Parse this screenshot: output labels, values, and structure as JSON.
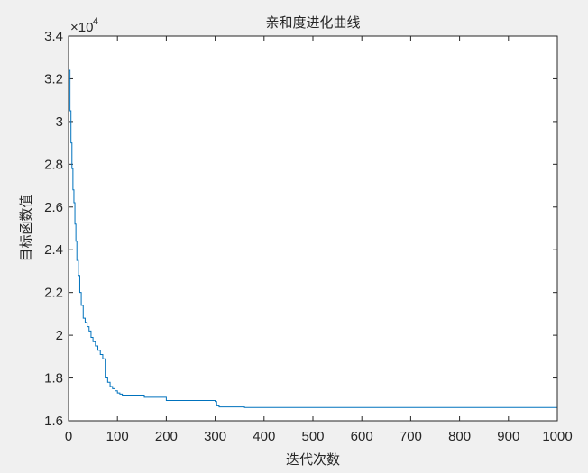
{
  "chart_data": {
    "type": "line",
    "title": "亲和度进化曲线",
    "xlabel": "迭代次数",
    "ylabel": "目标函数值",
    "xlim": [
      0,
      1000
    ],
    "ylim": [
      16000,
      34000
    ],
    "xticks": [
      "0",
      "100",
      "200",
      "300",
      "400",
      "500",
      "600",
      "700",
      "800",
      "900",
      "1000"
    ],
    "yticks": [
      "1.6",
      "1.8",
      "2",
      "2.2",
      "2.4",
      "2.6",
      "2.8",
      "3",
      "3.2",
      "3.4"
    ],
    "y_exponent": {
      "base": "×10",
      "power": "4"
    },
    "grid": false,
    "legend": "none",
    "series": [
      {
        "color": "#0072BD",
        "step": true,
        "x": [
          1,
          3,
          5,
          7,
          9,
          11,
          13,
          15,
          17,
          20,
          23,
          26,
          30,
          34,
          38,
          42,
          46,
          50,
          55,
          60,
          65,
          70,
          75,
          80,
          85,
          90,
          95,
          100,
          105,
          110,
          130,
          150,
          155,
          160,
          180,
          200,
          220,
          250,
          280,
          300,
          303,
          308,
          330,
          360,
          400,
          500,
          600,
          700,
          800,
          900,
          1000
        ],
        "values": [
          32400,
          30500,
          29000,
          27800,
          26800,
          26200,
          25200,
          24400,
          23500,
          22800,
          22000,
          21400,
          20800,
          20600,
          20400,
          20200,
          19900,
          19700,
          19500,
          19300,
          19100,
          18900,
          18000,
          17800,
          17600,
          17500,
          17400,
          17300,
          17250,
          17200,
          17200,
          17200,
          17100,
          17100,
          17100,
          16950,
          16950,
          16950,
          16950,
          16900,
          16700,
          16650,
          16650,
          16620,
          16620,
          16620,
          16620,
          16620,
          16620,
          16620,
          16620
        ]
      }
    ]
  }
}
